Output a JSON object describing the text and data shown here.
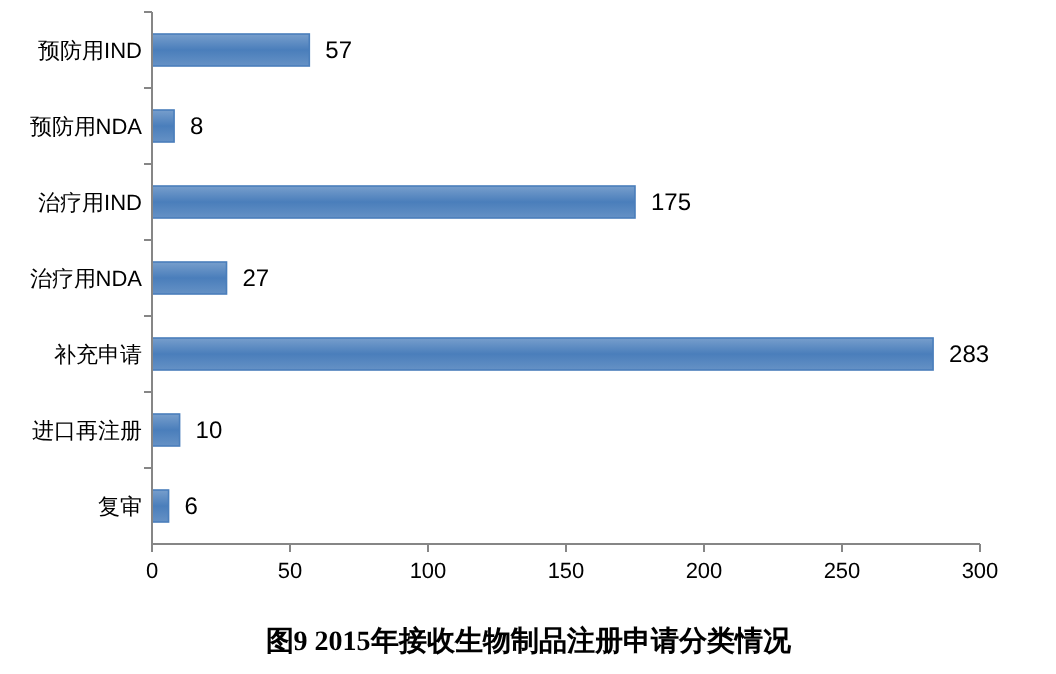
{
  "chart_data": {
    "type": "bar",
    "orientation": "horizontal",
    "title": "图9 2015年接收生物制品注册申请分类情况",
    "categories": [
      "预防用IND",
      "预防用NDA",
      "治疗用IND",
      "治疗用NDA",
      "补充申请",
      "进口再注册",
      "复审"
    ],
    "values": [
      57,
      8,
      175,
      27,
      283,
      10,
      6
    ],
    "color": "#4a7ebb",
    "xlim": [
      0,
      300
    ],
    "xticks": [
      0,
      50,
      100,
      150,
      200,
      250,
      300
    ],
    "data_labels": true
  }
}
